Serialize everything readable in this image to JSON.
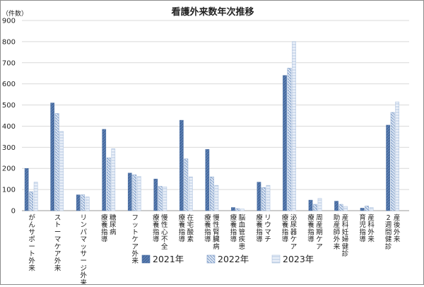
{
  "chart_data": {
    "type": "bar",
    "title": "看護外来数年次推移",
    "ylabel": "（件数）",
    "xlabel": "",
    "ylim": [
      0,
      900
    ],
    "yticks": [
      0,
      100,
      200,
      300,
      400,
      500,
      600,
      700,
      800,
      900
    ],
    "grid": true,
    "legend_position": "bottom",
    "categories": [
      [
        "がんサポート外来"
      ],
      [
        "ストーマケア外来"
      ],
      [
        "リンパマッサージ外来"
      ],
      [
        "糖尿病",
        "療養指導"
      ],
      [
        "フットケア外来"
      ],
      [
        "慢性心不全",
        "療養指導"
      ],
      [
        "在宅酸素",
        "療養指導"
      ],
      [
        "慢性腎臓病",
        "療養指導"
      ],
      [
        "脳血管疾患",
        "療養指導"
      ],
      [
        "リウマチ",
        "療養指導"
      ],
      [
        "泌尿器ケア",
        "療養指導"
      ],
      [
        "周産期ケア",
        "療養指導"
      ],
      [
        "産科妊婦健診",
        "助産師外来"
      ],
      [
        "産科外来",
        "育児指導"
      ],
      [
        "産後外来",
        "2週間健診"
      ]
    ],
    "series": [
      {
        "name": "2021年",
        "values": [
          200,
          510,
          75,
          385,
          178,
          150,
          428,
          290,
          15,
          135,
          640,
          50,
          45,
          12,
          405
        ],
        "color": "#5a7eb2"
      },
      {
        "name": "2022年",
        "values": [
          90,
          460,
          75,
          250,
          170,
          115,
          245,
          160,
          10,
          110,
          675,
          30,
          30,
          22,
          465
        ],
        "color": "#8ea9d1"
      },
      {
        "name": "2023年",
        "values": [
          135,
          375,
          65,
          293,
          162,
          113,
          160,
          120,
          8,
          120,
          800,
          58,
          20,
          15,
          515
        ],
        "color": "#c9d7ea"
      }
    ]
  }
}
